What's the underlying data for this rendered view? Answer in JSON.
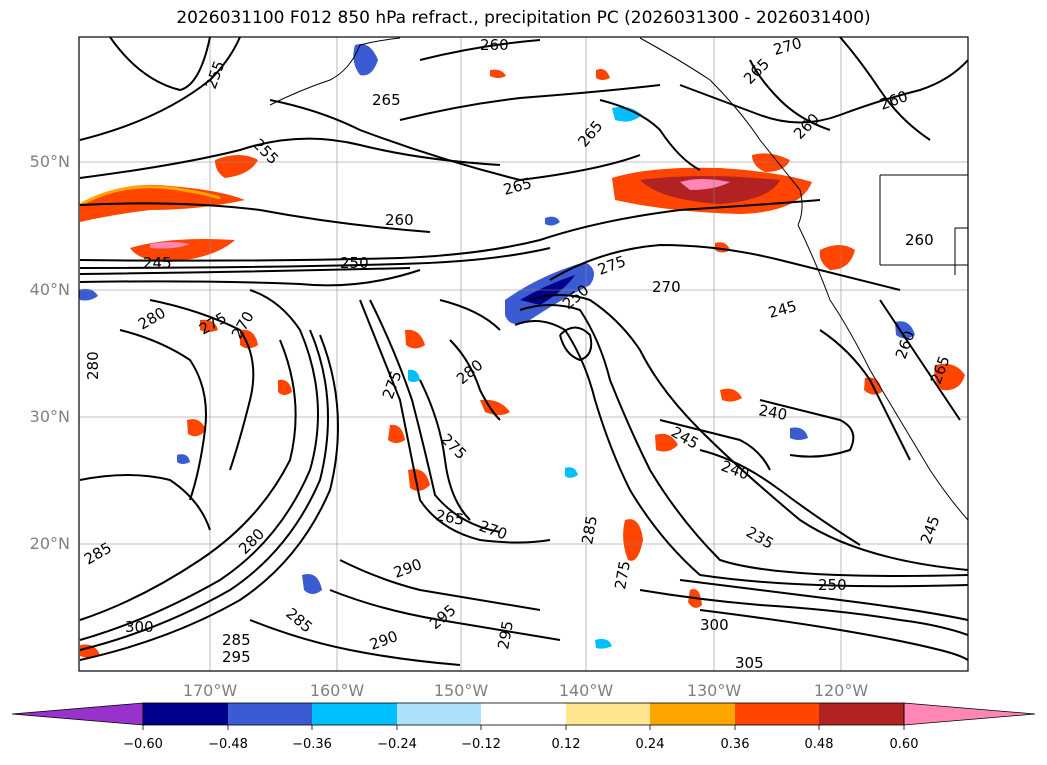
{
  "title": "2026031100 F012 850 hPa refract., precipitation PC (2026031300 - 2026031400)",
  "lat_labels": [
    "50°N",
    "40°N",
    "30°N",
    "20°N"
  ],
  "lon_labels": [
    "170°W",
    "160°W",
    "150°W",
    "140°W",
    "130°W",
    "120°W"
  ],
  "contour_labels": [
    "260",
    "270",
    "265",
    "255",
    "255",
    "265",
    "265",
    "260",
    "260",
    "265",
    "260",
    "275",
    "270",
    "245",
    "250",
    "280",
    "275",
    "270",
    "250",
    "245",
    "280",
    "280",
    "275",
    "275",
    "240",
    "245",
    "240",
    "260",
    "260",
    "280",
    "265",
    "270",
    "285",
    "235",
    "250",
    "285",
    "290",
    "295",
    "275",
    "285",
    "290",
    "285",
    "300",
    "295",
    "295",
    "305",
    "300",
    "245",
    "265"
  ],
  "colorbar": {
    "ticks": [
      "−0.60",
      "−0.48",
      "−0.36",
      "−0.24",
      "−0.12",
      "0.12",
      "0.24",
      "0.36",
      "0.48",
      "0.60"
    ],
    "colors": [
      "#9932CC",
      "#00008B",
      "#3A5BD2",
      "#00BFFF",
      "#ADE2FA",
      "#FFFFFF",
      "#FFE78F",
      "#FFA500",
      "#FF4500",
      "#B22222",
      "#FF86B5"
    ]
  }
}
